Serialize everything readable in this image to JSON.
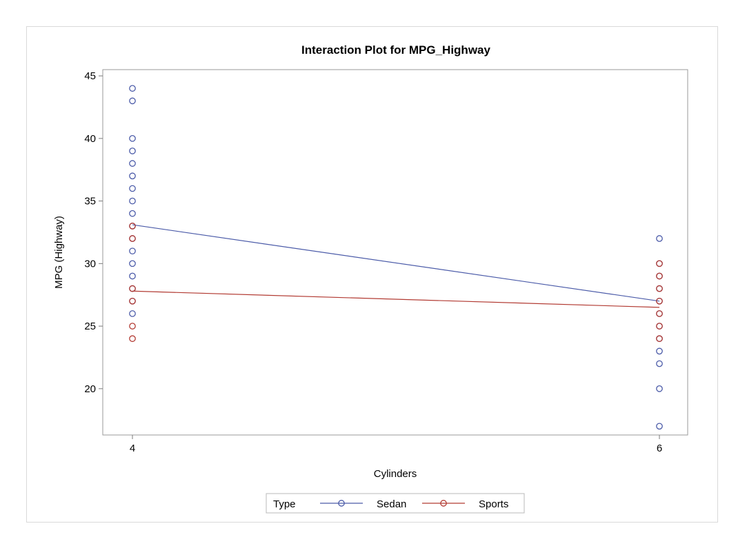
{
  "chart_data": {
    "type": "scatter",
    "title": "Interaction Plot for MPG_Highway",
    "xlabel": "Cylinders",
    "ylabel": "MPG (Highway)",
    "x_ticks": [
      4,
      6
    ],
    "y_ticks": [
      20,
      25,
      30,
      35,
      40,
      45
    ],
    "xlim": [
      4,
      6
    ],
    "ylim": [
      16.3,
      45.5
    ],
    "grid": false,
    "legend": {
      "title": "Type",
      "placement": "bottom-center"
    },
    "series": [
      {
        "name": "Sedan",
        "color": "#4a5aa8",
        "points": [
          {
            "x": 4,
            "y": 44
          },
          {
            "x": 4,
            "y": 43
          },
          {
            "x": 4,
            "y": 40
          },
          {
            "x": 4,
            "y": 39
          },
          {
            "x": 4,
            "y": 38
          },
          {
            "x": 4,
            "y": 37
          },
          {
            "x": 4,
            "y": 36
          },
          {
            "x": 4,
            "y": 35
          },
          {
            "x": 4,
            "y": 34
          },
          {
            "x": 4,
            "y": 33
          },
          {
            "x": 4,
            "y": 32
          },
          {
            "x": 4,
            "y": 31
          },
          {
            "x": 4,
            "y": 30
          },
          {
            "x": 4,
            "y": 29
          },
          {
            "x": 4,
            "y": 28
          },
          {
            "x": 4,
            "y": 27
          },
          {
            "x": 4,
            "y": 26
          },
          {
            "x": 6,
            "y": 32
          },
          {
            "x": 6,
            "y": 30
          },
          {
            "x": 6,
            "y": 29
          },
          {
            "x": 6,
            "y": 28
          },
          {
            "x": 6,
            "y": 27
          },
          {
            "x": 6,
            "y": 26
          },
          {
            "x": 6,
            "y": 25
          },
          {
            "x": 6,
            "y": 24
          },
          {
            "x": 6,
            "y": 23
          },
          {
            "x": 6,
            "y": 22
          },
          {
            "x": 6,
            "y": 20
          },
          {
            "x": 6,
            "y": 17
          }
        ],
        "mean_line": [
          {
            "x": 4,
            "y": 33.1
          },
          {
            "x": 6,
            "y": 27.0
          }
        ]
      },
      {
        "name": "Sports",
        "color": "#b23a32",
        "points": [
          {
            "x": 4,
            "y": 33
          },
          {
            "x": 4,
            "y": 32
          },
          {
            "x": 4,
            "y": 28
          },
          {
            "x": 4,
            "y": 27
          },
          {
            "x": 4,
            "y": 25
          },
          {
            "x": 4,
            "y": 24
          },
          {
            "x": 6,
            "y": 30
          },
          {
            "x": 6,
            "y": 29
          },
          {
            "x": 6,
            "y": 28
          },
          {
            "x": 6,
            "y": 27
          },
          {
            "x": 6,
            "y": 26
          },
          {
            "x": 6,
            "y": 25
          },
          {
            "x": 6,
            "y": 24
          }
        ],
        "mean_line": [
          {
            "x": 4,
            "y": 27.8
          },
          {
            "x": 6,
            "y": 26.5
          }
        ]
      }
    ]
  }
}
